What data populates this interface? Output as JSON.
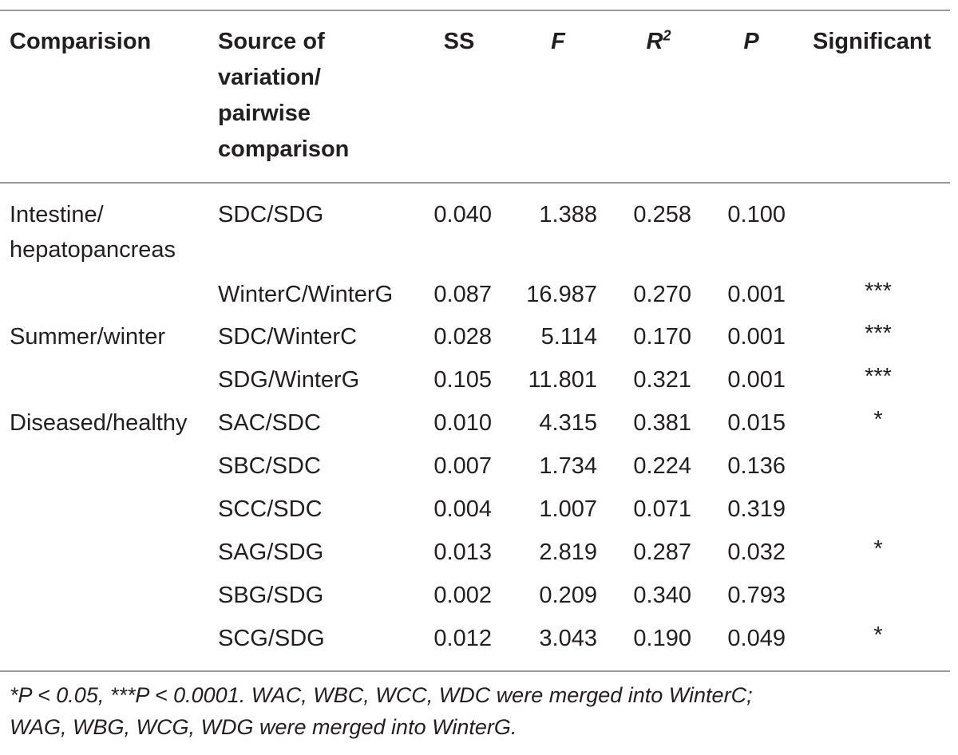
{
  "table": {
    "headers": {
      "comparison": "Comparision",
      "source": [
        "Source of",
        "variation/",
        "pairwise",
        "comparison"
      ],
      "ss": "SS",
      "f": "F",
      "r2_base": "R",
      "r2_sup": "2",
      "p": "P",
      "significant": "Significant"
    },
    "rows": [
      {
        "group": [
          "Intestine/",
          "hepatopancreas"
        ],
        "source": "SDC/SDG",
        "ss": "0.040",
        "f": "1.388",
        "r2": "0.258",
        "p": "0.100",
        "sig": ""
      },
      {
        "group": [],
        "source": "WinterC/WinterG",
        "ss": "0.087",
        "f": "16.987",
        "r2": "0.270",
        "p": "0.001",
        "sig": "***"
      },
      {
        "group": [
          "Summer/winter"
        ],
        "source": "SDC/WinterC",
        "ss": "0.028",
        "f": "5.114",
        "r2": "0.170",
        "p": "0.001",
        "sig": "***"
      },
      {
        "group": [],
        "source": "SDG/WinterG",
        "ss": "0.105",
        "f": "11.801",
        "r2": "0.321",
        "p": "0.001",
        "sig": "***"
      },
      {
        "group": [
          "Diseased/healthy"
        ],
        "source": "SAC/SDC",
        "ss": "0.010",
        "f": "4.315",
        "r2": "0.381",
        "p": "0.015",
        "sig": "*"
      },
      {
        "group": [],
        "source": "SBC/SDC",
        "ss": "0.007",
        "f": "1.734",
        "r2": "0.224",
        "p": "0.136",
        "sig": ""
      },
      {
        "group": [],
        "source": "SCC/SDC",
        "ss": "0.004",
        "f": "1.007",
        "r2": "0.071",
        "p": "0.319",
        "sig": ""
      },
      {
        "group": [],
        "source": "SAG/SDG",
        "ss": "0.013",
        "f": "2.819",
        "r2": "0.287",
        "p": "0.032",
        "sig": "*"
      },
      {
        "group": [],
        "source": "SBG/SDG",
        "ss": "0.002",
        "f": "0.209",
        "r2": "0.340",
        "p": "0.793",
        "sig": ""
      },
      {
        "group": [],
        "source": "SCG/SDG",
        "ss": "0.012",
        "f": "3.043",
        "r2": "0.190",
        "p": "0.049",
        "sig": "*"
      }
    ],
    "footnote": [
      "*P < 0.05, ***P < 0.0001. WAC, WBC, WCC, WDC were merged into WinterC;",
      "WAG, WBG, WCG, WDG were merged into WinterG."
    ]
  }
}
